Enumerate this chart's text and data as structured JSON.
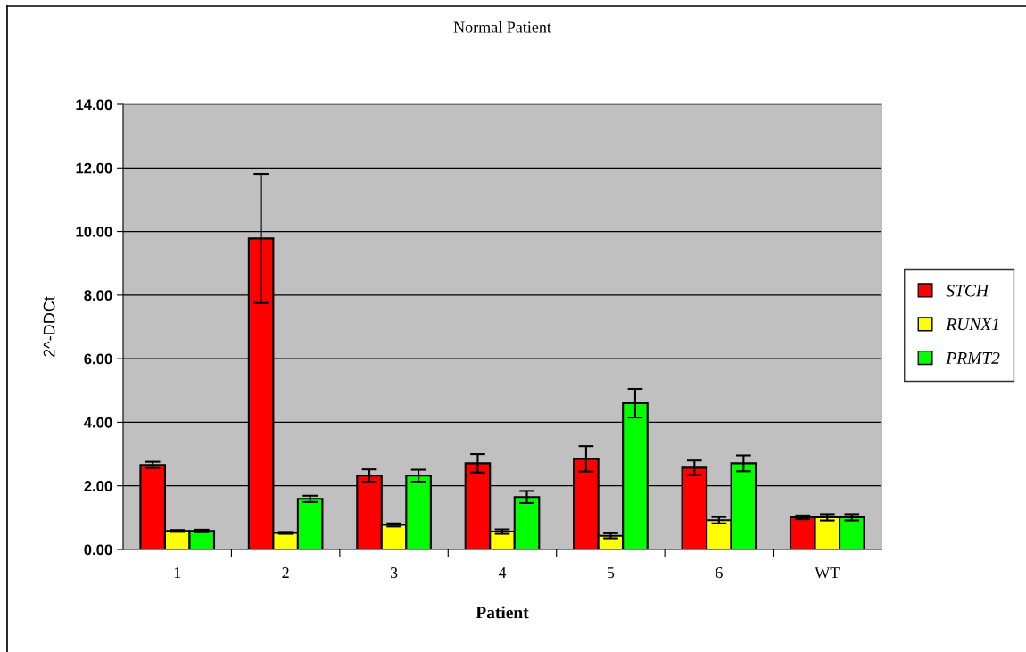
{
  "chart_data": {
    "type": "bar",
    "title": "Normal Patient",
    "xlabel": "Patient",
    "ylabel": "2^-DDCt",
    "categories": [
      "1",
      "2",
      "3",
      "4",
      "5",
      "6",
      "WT"
    ],
    "series": [
      {
        "name": "STCH",
        "color": "#ff0000",
        "values": [
          2.66,
          9.78,
          2.32,
          2.71,
          2.85,
          2.57,
          1.01
        ],
        "errors": [
          0.1,
          2.03,
          0.2,
          0.29,
          0.4,
          0.23,
          0.06
        ]
      },
      {
        "name": "RUNX1",
        "color": "#ffff00",
        "values": [
          0.58,
          0.52,
          0.77,
          0.56,
          0.43,
          0.92,
          1.01
        ],
        "errors": [
          0.03,
          0.03,
          0.05,
          0.07,
          0.08,
          0.1,
          0.1
        ]
      },
      {
        "name": "PRMT2",
        "color": "#00ff00",
        "values": [
          0.58,
          1.59,
          2.32,
          1.65,
          4.6,
          2.71,
          1.01
        ],
        "errors": [
          0.04,
          0.1,
          0.19,
          0.19,
          0.45,
          0.25,
          0.1
        ]
      }
    ],
    "ylim": [
      0,
      14
    ],
    "yticks": [
      {
        "value": 0,
        "label": "0.00"
      },
      {
        "value": 2,
        "label": "2.00"
      },
      {
        "value": 4,
        "label": "4.00"
      },
      {
        "value": 6,
        "label": "6.00"
      },
      {
        "value": 8,
        "label": "8.00"
      },
      {
        "value": 10,
        "label": "10.00"
      },
      {
        "value": 12,
        "label": "12.00"
      },
      {
        "value": 14,
        "label": "14.00"
      }
    ],
    "grid": "y",
    "legend": "right"
  }
}
